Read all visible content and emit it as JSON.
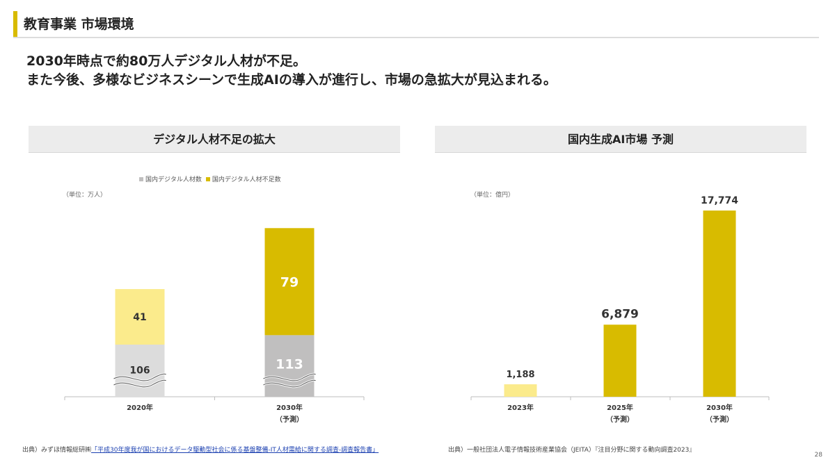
{
  "header": {
    "title": "教育事業 市場環境"
  },
  "lead": {
    "line1": "2030年時点で約80万人デジタル人材が不足。",
    "line2": "また今後、多様なビジネスシーンで生成AIの導入が進行し、市場の急拡大が見込まれる。"
  },
  "left_panel": {
    "title": "デジタル人材不足の拡大",
    "unit": "（単位：万人）",
    "legend": [
      {
        "label": "国内デジタル人材数",
        "color": "#c0bfbf"
      },
      {
        "label": "国内デジタル人材不足数",
        "color": "#d8bb00"
      }
    ],
    "source_prefix": "出典）みずほ情報総研㈱",
    "source_link": "「平成30年度我が国におけるデータ駆動型社会に係る基盤整備-IT人材需給に関する調査-調査報告書」"
  },
  "right_panel": {
    "title": "国内生成AI市場 予測",
    "unit": "（単位：億円）",
    "source": "出典）一般社団法人電子情報技術産業協会（JEITA）『注目分野に関する動向調査2023』"
  },
  "page_number": "28",
  "chart_data": [
    {
      "type": "bar",
      "stacked": true,
      "title": "デジタル人材不足の拡大",
      "categories": [
        "2020年",
        "2030年\n（予測）"
      ],
      "series": [
        {
          "name": "国内デジタル人材数",
          "values": [
            106,
            113
          ],
          "colors": [
            "#dcdcdc",
            "#c0bfbf"
          ]
        },
        {
          "name": "国内デジタル人材不足数",
          "values": [
            41,
            79
          ],
          "colors": [
            "#fbeb8c",
            "#d8bb00"
          ]
        }
      ],
      "axis_break": true,
      "legend_position": "top",
      "ylabel": "（単位：万人）"
    },
    {
      "type": "bar",
      "title": "国内生成AI市場 予測",
      "categories": [
        "2023年",
        "2025年\n（予測）",
        "2030年\n（予測）"
      ],
      "values": [
        1188,
        6879,
        17774
      ],
      "value_labels": [
        "1,188",
        "6,879",
        "17,774"
      ],
      "colors": [
        "#fbeb8c",
        "#d8bb00",
        "#d8bb00"
      ],
      "ylim": [
        0,
        17774
      ],
      "ylabel": "（単位：億円）"
    }
  ]
}
